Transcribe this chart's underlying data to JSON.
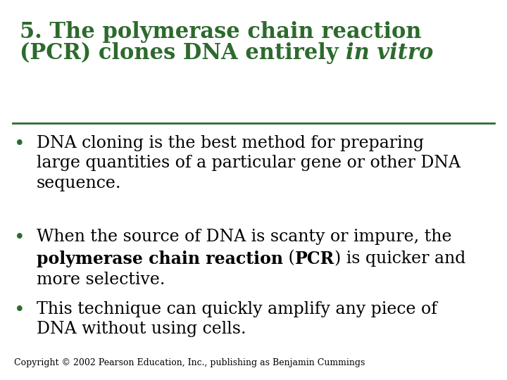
{
  "background_color": "#ffffff",
  "title_line1": "5. The polymerase chain reaction",
  "title_line2_normal": "(PCR) clones DNA entirely ",
  "title_line2_italic": "in vitro",
  "title_color": "#2d6a2d",
  "separator_color": "#2d6a2d",
  "bullet_color": "#2d6a2d",
  "text_color": "#000000",
  "copyright": "Copyright © 2002 Pearson Education, Inc., publishing as Benjamin Cummings",
  "title_fontsize": 22,
  "body_fontsize": 17,
  "copyright_fontsize": 9,
  "fig_width": 7.2,
  "fig_height": 5.4,
  "dpi": 100
}
